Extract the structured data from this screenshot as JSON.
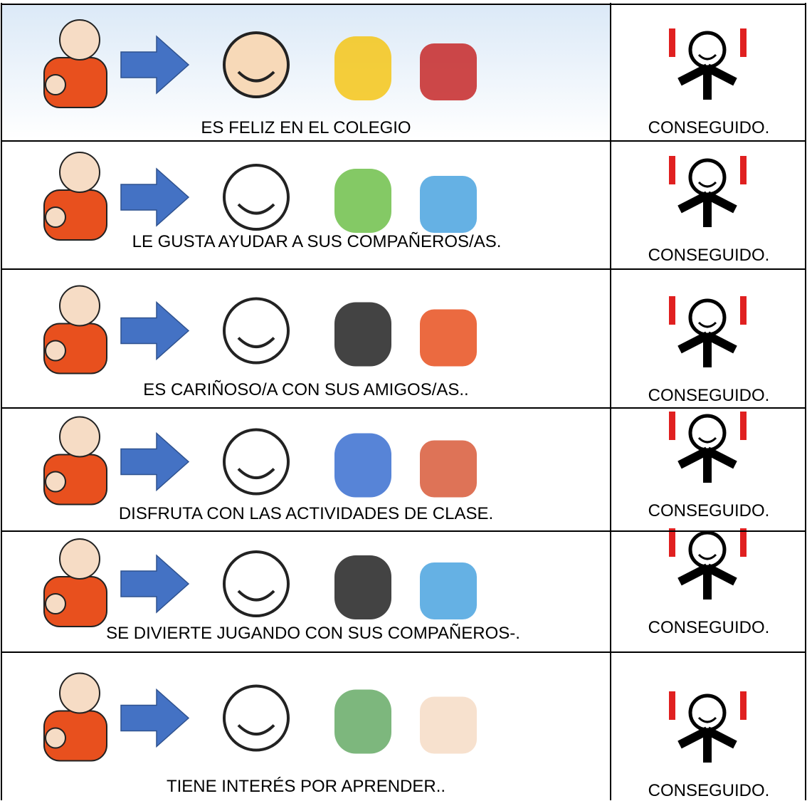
{
  "table": {
    "rows": [
      {
        "text": "ES FELIZ EN EL COLEGIO",
        "status": "CONSEGUIDO."
      },
      {
        "text": "LE GUSTA AYUDAR A SUS COMPAÑEROS/AS.",
        "status": "CONSEGUIDO."
      },
      {
        "text": "ES CARIÑOSO/A CON SUS AMIGOS/AS..",
        "status": "CONSEGUIDO."
      },
      {
        "text": "DISFRUTA CON LAS ACTIVIDADES DE CLASE.",
        "status": "CONSEGUIDO."
      },
      {
        "text": "SE DIVIERTE JUGANDO CON SUS COMPAÑEROS-.",
        "status": "CONSEGUIDO."
      },
      {
        "text": "TIENE INTERÉS POR APRENDER..",
        "status": "CONSEGUIDO."
      }
    ]
  }
}
